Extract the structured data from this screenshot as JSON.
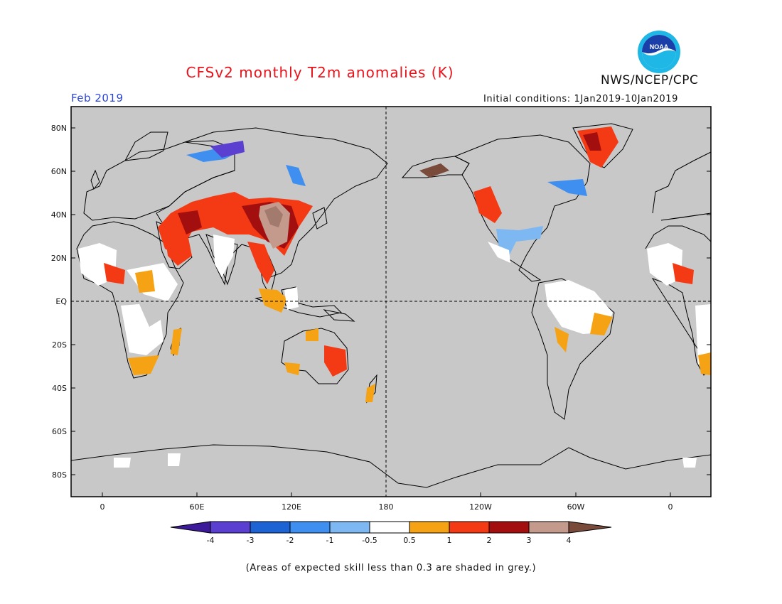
{
  "header": {
    "title": "CFSv2 monthly T2m anomalies (K)",
    "agency": "NWS/NCEP/CPC",
    "month": "Feb 2019",
    "initial_conditions": "Initial conditions: 1Jan2019-10Jan2019",
    "logo_text": "NOAA"
  },
  "map": {
    "lat_labels": [
      "80N",
      "60N",
      "40N",
      "20N",
      "EQ",
      "20S",
      "40S",
      "60S",
      "80S"
    ],
    "lon_labels": [
      "0",
      "60E",
      "120E",
      "180",
      "120W",
      "60W",
      "0"
    ],
    "background_color": "#c8c8c8",
    "coastline_color": "#000000"
  },
  "colorbar": {
    "ticks": [
      "-4",
      "-3",
      "-2",
      "-1",
      "-0.5",
      "0.5",
      "1",
      "2",
      "3",
      "4"
    ],
    "colors": [
      "#3c1a9a",
      "#5a3fd0",
      "#1d63d4",
      "#3f8ff0",
      "#7db8f2",
      "#ffffff",
      "#f5a314",
      "#f43a14",
      "#a30f0f",
      "#c49a8c",
      "#7a4a3a"
    ]
  },
  "footnote": "(Areas of expected skill less than 0.3 are shaded in grey.)"
}
